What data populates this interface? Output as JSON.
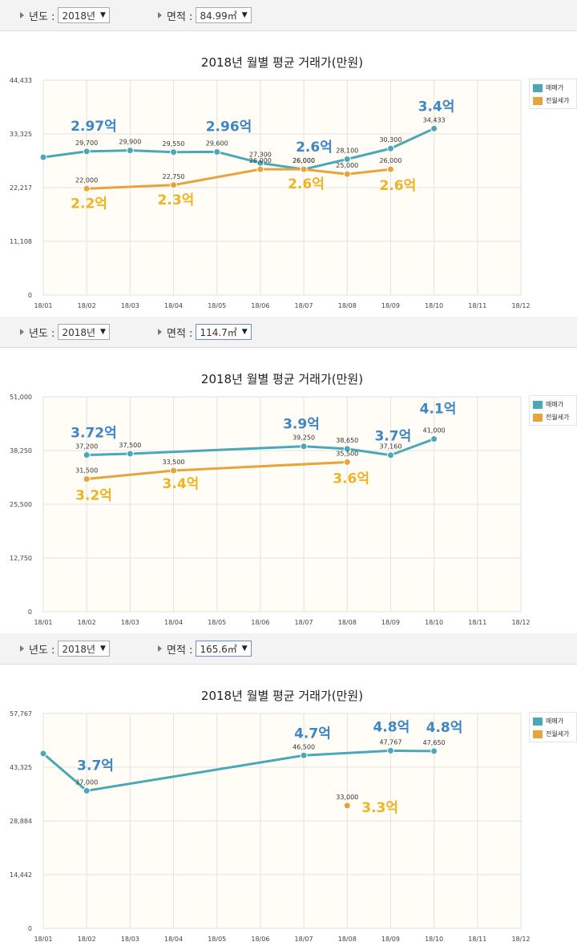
{
  "colors": {
    "sale": "#4aa8b8",
    "jeonse": "#e8a33c",
    "big_sale": "#3e86c6",
    "big_jeonse": "#f0b321",
    "plot_bg": "#fffdf6"
  },
  "filters": [
    {
      "year_label": "년도 :",
      "year_value": "2018년",
      "area_label": "면적 :",
      "area_value": "84.99㎡"
    },
    {
      "year_label": "년도 :",
      "year_value": "2018년",
      "area_label": "면적 :",
      "area_value": "114.7㎡"
    },
    {
      "year_label": "년도 :",
      "year_value": "2018년",
      "area_label": "면적 :",
      "area_value": "165.6㎡"
    }
  ],
  "legend": {
    "sale": "매매가",
    "jeonse": "전월세가"
  },
  "chart_data": [
    {
      "type": "line",
      "title": "2018년 월별 평균 거래가(만원)",
      "categories": [
        "18/01",
        "18/02",
        "18/03",
        "18/04",
        "18/05",
        "18/06",
        "18/07",
        "18/08",
        "18/09",
        "18/10",
        "18/11",
        "18/12"
      ],
      "yticks": [
        "0",
        "11,108",
        "22,217",
        "33,325",
        "44,433"
      ],
      "ylim": [
        0,
        44433
      ],
      "series": [
        {
          "name": "매매가",
          "key": "sale",
          "values": [
            28500,
            29700,
            29900,
            29550,
            29600,
            27300,
            26000,
            28100,
            30300,
            34433,
            null,
            null
          ],
          "labels": [
            null,
            "29,700",
            "29,900",
            "29,550",
            "29,600",
            "27,300",
            "26,000",
            "28,100",
            "30,300",
            "34,433",
            null,
            null
          ]
        },
        {
          "name": "전월세가",
          "key": "jeonse",
          "values": [
            null,
            22000,
            null,
            22750,
            null,
            26000,
            26000,
            25000,
            26000,
            null,
            null,
            null
          ],
          "labels": [
            null,
            "22,000",
            null,
            "22,750",
            null,
            "26,000",
            "26,000",
            "25,000",
            "26,000",
            null,
            null,
            null
          ]
        }
      ],
      "annotations": [
        {
          "text": "2.97억",
          "series": "sale",
          "month": 2
        },
        {
          "text": "2.96억",
          "series": "sale",
          "month": 5
        },
        {
          "text": "2.6억",
          "series": "sale",
          "month": 7
        },
        {
          "text": "3.4억",
          "series": "sale",
          "month": 10
        },
        {
          "text": "2.2억",
          "series": "jeonse",
          "month": 2
        },
        {
          "text": "2.3억",
          "series": "jeonse",
          "month": 4
        },
        {
          "text": "2.6억",
          "series": "jeonse",
          "month": 7
        },
        {
          "text": "2.6억",
          "series": "jeonse",
          "month": 9
        }
      ]
    },
    {
      "type": "line",
      "title": "2018년 월별 평균 거래가(만원)",
      "categories": [
        "18/01",
        "18/02",
        "18/03",
        "18/04",
        "18/05",
        "18/06",
        "18/07",
        "18/08",
        "18/09",
        "18/10",
        "18/11",
        "18/12"
      ],
      "yticks": [
        "0",
        "12,750",
        "25,500",
        "38,250",
        "51,000"
      ],
      "ylim": [
        0,
        51000
      ],
      "series": [
        {
          "name": "매매가",
          "key": "sale",
          "values": [
            null,
            37200,
            37500,
            null,
            null,
            null,
            39250,
            38650,
            37160,
            41000,
            null,
            null
          ],
          "labels": [
            null,
            "37,200",
            "37,500",
            null,
            null,
            null,
            "39,250",
            "38,650",
            "37,160",
            "41,000",
            null,
            null
          ]
        },
        {
          "name": "전월세가",
          "key": "jeonse",
          "values": [
            null,
            31500,
            null,
            33500,
            null,
            null,
            null,
            35500,
            null,
            null,
            null,
            null
          ],
          "labels": [
            null,
            "31,500",
            null,
            "33,500",
            null,
            null,
            null,
            "35,500",
            null,
            null,
            null,
            null
          ]
        }
      ],
      "annotations": [
        {
          "text": "3.72억",
          "series": "sale",
          "month": 2
        },
        {
          "text": "3.9억",
          "series": "sale",
          "month": 7
        },
        {
          "text": "3.7억",
          "series": "sale",
          "month": 9
        },
        {
          "text": "4.1억",
          "series": "sale",
          "month": 10
        },
        {
          "text": "3.2억",
          "series": "jeonse",
          "month": 2
        },
        {
          "text": "3.4억",
          "series": "jeonse",
          "month": 4
        },
        {
          "text": "3.6억",
          "series": "jeonse",
          "month": 8
        }
      ]
    },
    {
      "type": "line",
      "title": "2018년 월별 평균 거래가(만원)",
      "categories": [
        "18/01",
        "18/02",
        "18/03",
        "18/04",
        "18/05",
        "18/06",
        "18/07",
        "18/08",
        "18/09",
        "18/10",
        "18/11",
        "18/12"
      ],
      "yticks": [
        "0",
        "14,442",
        "28,884",
        "43,325",
        "57,767"
      ],
      "ylim": [
        0,
        57767
      ],
      "series": [
        {
          "name": "매매가",
          "key": "sale",
          "values": [
            47000,
            37000,
            null,
            null,
            null,
            null,
            46500,
            null,
            47767,
            47650,
            null,
            null
          ],
          "labels": [
            null,
            "37,000",
            null,
            null,
            null,
            null,
            "46,500",
            null,
            "47,767",
            "47,650",
            null,
            null
          ]
        },
        {
          "name": "전월세가",
          "key": "jeonse",
          "values": [
            null,
            null,
            null,
            null,
            null,
            null,
            null,
            33000,
            null,
            null,
            null,
            null
          ],
          "labels": [
            null,
            null,
            null,
            null,
            null,
            null,
            null,
            "33,000",
            null,
            null,
            null,
            null
          ]
        }
      ],
      "annotations": [
        {
          "text": "3.7억",
          "series": "sale",
          "month": 2
        },
        {
          "text": "4.7억",
          "series": "sale",
          "month": 7
        },
        {
          "text": "4.8억",
          "series": "sale",
          "month": 9
        },
        {
          "text": "4.8억",
          "series": "sale",
          "month": 10
        },
        {
          "text": "3.3억",
          "series": "jeonse",
          "month": 8
        }
      ]
    }
  ]
}
